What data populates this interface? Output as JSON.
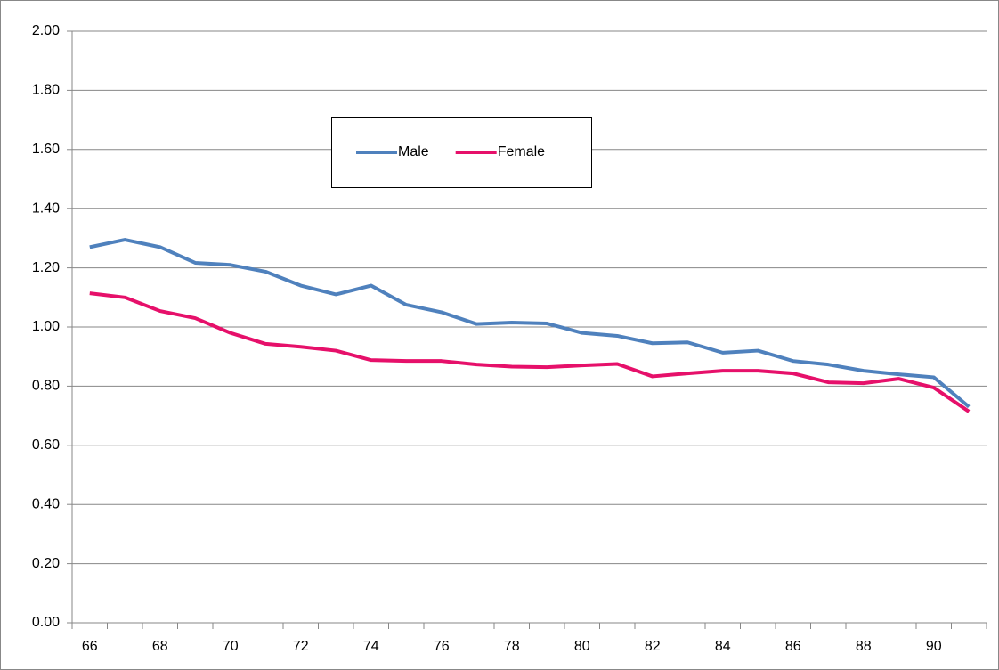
{
  "chart_data": {
    "type": "line",
    "categories": [
      "66",
      null,
      "68",
      null,
      "70",
      null,
      "72",
      null,
      "74",
      null,
      "76",
      null,
      "78",
      null,
      "80",
      null,
      "82",
      null,
      "84",
      null,
      "86",
      null,
      "88",
      null,
      "90",
      null
    ],
    "series": [
      {
        "name": "Male",
        "color": "#4f81bd",
        "values": [
          1.27,
          1.295,
          1.27,
          1.217,
          1.21,
          1.187,
          1.14,
          1.11,
          1.14,
          1.075,
          1.05,
          1.01,
          1.015,
          1.012,
          0.98,
          0.97,
          0.945,
          0.948,
          0.913,
          0.92,
          0.885,
          0.873,
          0.852,
          0.84,
          0.83,
          0.73
        ]
      },
      {
        "name": "Female",
        "color": "#e6106a",
        "values": [
          1.114,
          1.1,
          1.054,
          1.03,
          0.98,
          0.943,
          0.933,
          0.92,
          0.888,
          0.885,
          0.885,
          0.873,
          0.866,
          0.864,
          0.87,
          0.875,
          0.833,
          0.843,
          0.852,
          0.852,
          0.843,
          0.813,
          0.81,
          0.825,
          0.795,
          0.714
        ]
      }
    ],
    "ylim": [
      0,
      2
    ],
    "yticks": [
      {
        "value": 0,
        "label": "0.00"
      },
      {
        "value": 0.2,
        "label": "0.20"
      },
      {
        "value": 0.4,
        "label": "0.40"
      },
      {
        "value": 0.6,
        "label": "0.60"
      },
      {
        "value": 0.8,
        "label": "0.80"
      },
      {
        "value": 1,
        "label": "1.00"
      },
      {
        "value": 1.2,
        "label": "1.20"
      },
      {
        "value": 1.4,
        "label": "1.40"
      },
      {
        "value": 1.6,
        "label": "1.60"
      },
      {
        "value": 1.8,
        "label": "1.80"
      },
      {
        "value": 2,
        "label": "2.00"
      }
    ],
    "grid": true
  }
}
